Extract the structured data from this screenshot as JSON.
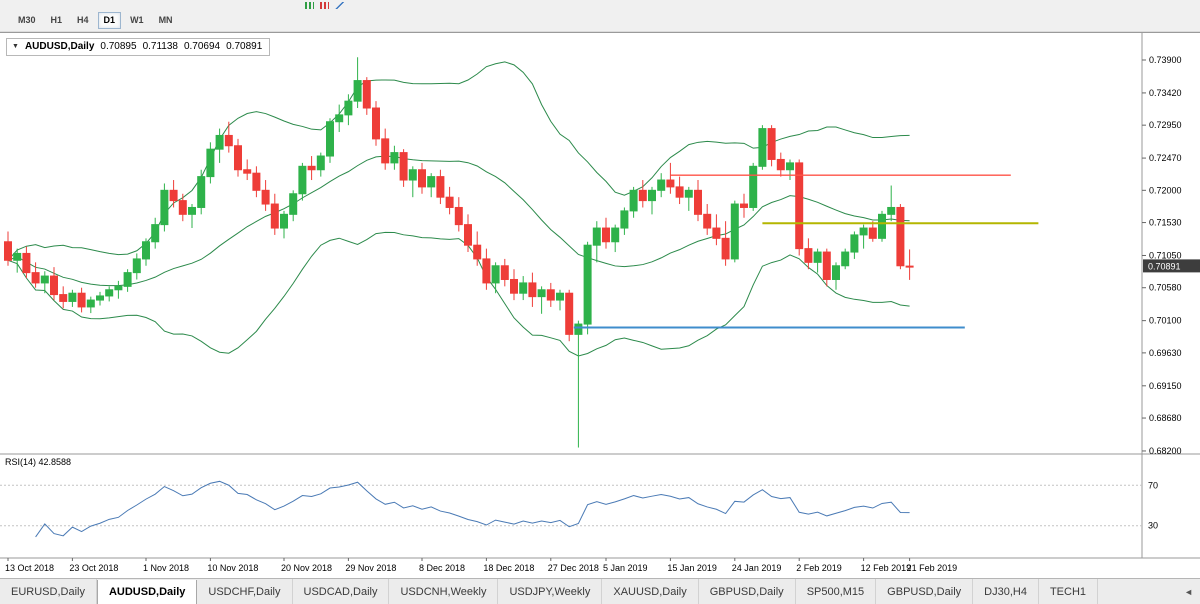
{
  "top_toolbar": {
    "icons": [
      {
        "name": "bar-chart-icon"
      },
      {
        "name": "candlestick-chart-icon"
      },
      {
        "name": "line-chart-icon"
      }
    ]
  },
  "timeframe_toolbar": {
    "buttons": [
      {
        "label": "M30",
        "active": false
      },
      {
        "label": "H1",
        "active": false
      },
      {
        "label": "H4",
        "active": false
      },
      {
        "label": "D1",
        "active": true
      },
      {
        "label": "W1",
        "active": false
      },
      {
        "label": "MN",
        "active": false
      }
    ]
  },
  "chart": {
    "symbol_title": "AUDUSD,Daily",
    "ohlc": {
      "open": "0.70895",
      "high": "0.71138",
      "low": "0.70694",
      "close": "0.70891"
    },
    "rsi_label": "RSI(14) 42.8588",
    "current_price": "0.70891",
    "collapse_arrow": "▼"
  },
  "chart_data": {
    "type": "candlestick",
    "title": "AUDUSD,Daily",
    "symbol": "AUDUSD",
    "timeframe": "Daily",
    "price_axis_ticks": [
      "0.73900",
      "0.73420",
      "0.72950",
      "0.72470",
      "0.72000",
      "0.71530",
      "0.71050",
      "0.70580",
      "0.70100",
      "0.69630",
      "0.69150",
      "0.68680",
      "0.68200"
    ],
    "date_labels": [
      {
        "text": "13 Oct 2018",
        "i": 0
      },
      {
        "text": "23 Oct 2018",
        "i": 7
      },
      {
        "text": "1 Nov 2018",
        "i": 15
      },
      {
        "text": "10 Nov 2018",
        "i": 22
      },
      {
        "text": "20 Nov 2018",
        "i": 30
      },
      {
        "text": "29 Nov 2018",
        "i": 37
      },
      {
        "text": "8 Dec 2018",
        "i": 45
      },
      {
        "text": "18 Dec 2018",
        "i": 52
      },
      {
        "text": "27 Dec 2018",
        "i": 59
      },
      {
        "text": "5 Jan 2019",
        "i": 65
      },
      {
        "text": "15 Jan 2019",
        "i": 72
      },
      {
        "text": "24 Jan 2019",
        "i": 79
      },
      {
        "text": "2 Feb 2019",
        "i": 86
      },
      {
        "text": "12 Feb 2019",
        "i": 93
      },
      {
        "text": "21 Feb 2019",
        "i": 98
      }
    ],
    "candles_ohlc": [
      [
        0.7125,
        0.714,
        0.709,
        0.7098
      ],
      [
        0.7098,
        0.7115,
        0.708,
        0.7108
      ],
      [
        0.7108,
        0.7118,
        0.7072,
        0.708
      ],
      [
        0.708,
        0.7095,
        0.7058,
        0.7065
      ],
      [
        0.7065,
        0.7082,
        0.705,
        0.7075
      ],
      [
        0.7075,
        0.7088,
        0.704,
        0.7048
      ],
      [
        0.7048,
        0.706,
        0.7028,
        0.7038
      ],
      [
        0.7038,
        0.7055,
        0.703,
        0.705
      ],
      [
        0.705,
        0.7058,
        0.7022,
        0.703
      ],
      [
        0.703,
        0.7045,
        0.7021,
        0.704
      ],
      [
        0.704,
        0.7052,
        0.7032,
        0.7046
      ],
      [
        0.7046,
        0.706,
        0.7038,
        0.7055
      ],
      [
        0.7055,
        0.7068,
        0.7042,
        0.706
      ],
      [
        0.706,
        0.7085,
        0.7052,
        0.708
      ],
      [
        0.708,
        0.7108,
        0.707,
        0.71
      ],
      [
        0.71,
        0.713,
        0.709,
        0.7125
      ],
      [
        0.7125,
        0.716,
        0.7115,
        0.715
      ],
      [
        0.715,
        0.721,
        0.714,
        0.72
      ],
      [
        0.72,
        0.7215,
        0.7175,
        0.7185
      ],
      [
        0.7185,
        0.7195,
        0.7155,
        0.7165
      ],
      [
        0.7165,
        0.718,
        0.7145,
        0.7175
      ],
      [
        0.7175,
        0.723,
        0.7165,
        0.722
      ],
      [
        0.722,
        0.727,
        0.721,
        0.726
      ],
      [
        0.726,
        0.729,
        0.724,
        0.728
      ],
      [
        0.728,
        0.73,
        0.7255,
        0.7265
      ],
      [
        0.7265,
        0.7275,
        0.722,
        0.723
      ],
      [
        0.723,
        0.7245,
        0.7215,
        0.7225
      ],
      [
        0.7225,
        0.7235,
        0.719,
        0.72
      ],
      [
        0.72,
        0.7215,
        0.717,
        0.718
      ],
      [
        0.718,
        0.7195,
        0.7135,
        0.7145
      ],
      [
        0.7145,
        0.717,
        0.713,
        0.7165
      ],
      [
        0.7165,
        0.72,
        0.7155,
        0.7195
      ],
      [
        0.7195,
        0.724,
        0.7185,
        0.7235
      ],
      [
        0.7235,
        0.725,
        0.7215,
        0.723
      ],
      [
        0.723,
        0.7255,
        0.722,
        0.725
      ],
      [
        0.725,
        0.7305,
        0.724,
        0.73
      ],
      [
        0.73,
        0.7325,
        0.7285,
        0.731
      ],
      [
        0.731,
        0.734,
        0.7295,
        0.733
      ],
      [
        0.733,
        0.7394,
        0.732,
        0.736
      ],
      [
        0.736,
        0.7365,
        0.731,
        0.732
      ],
      [
        0.732,
        0.733,
        0.7265,
        0.7275
      ],
      [
        0.7275,
        0.729,
        0.723,
        0.724
      ],
      [
        0.724,
        0.7265,
        0.723,
        0.7255
      ],
      [
        0.7255,
        0.726,
        0.7205,
        0.7215
      ],
      [
        0.7215,
        0.7235,
        0.719,
        0.723
      ],
      [
        0.723,
        0.724,
        0.7195,
        0.7205
      ],
      [
        0.7205,
        0.7225,
        0.719,
        0.722
      ],
      [
        0.722,
        0.723,
        0.718,
        0.719
      ],
      [
        0.719,
        0.7205,
        0.7165,
        0.7175
      ],
      [
        0.7175,
        0.719,
        0.714,
        0.715
      ],
      [
        0.715,
        0.7165,
        0.711,
        0.712
      ],
      [
        0.712,
        0.714,
        0.709,
        0.71
      ],
      [
        0.71,
        0.7115,
        0.7055,
        0.7065
      ],
      [
        0.7065,
        0.7095,
        0.705,
        0.709
      ],
      [
        0.709,
        0.71,
        0.706,
        0.707
      ],
      [
        0.707,
        0.7085,
        0.704,
        0.705
      ],
      [
        0.705,
        0.7075,
        0.704,
        0.7065
      ],
      [
        0.7065,
        0.708,
        0.703,
        0.7045
      ],
      [
        0.7045,
        0.706,
        0.702,
        0.7055
      ],
      [
        0.7055,
        0.7065,
        0.703,
        0.704
      ],
      [
        0.704,
        0.7055,
        0.7025,
        0.705
      ],
      [
        0.705,
        0.7055,
        0.698,
        0.699
      ],
      [
        0.699,
        0.701,
        0.6825,
        0.7005
      ],
      [
        0.7005,
        0.7125,
        0.699,
        0.712
      ],
      [
        0.712,
        0.7155,
        0.7095,
        0.7145
      ],
      [
        0.7145,
        0.716,
        0.7115,
        0.7125
      ],
      [
        0.7125,
        0.715,
        0.711,
        0.7145
      ],
      [
        0.7145,
        0.7175,
        0.7135,
        0.717
      ],
      [
        0.717,
        0.7205,
        0.716,
        0.72
      ],
      [
        0.72,
        0.7215,
        0.7175,
        0.7185
      ],
      [
        0.7185,
        0.7205,
        0.7165,
        0.72
      ],
      [
        0.72,
        0.7225,
        0.719,
        0.7215
      ],
      [
        0.7215,
        0.724,
        0.7195,
        0.7205
      ],
      [
        0.7205,
        0.722,
        0.718,
        0.719
      ],
      [
        0.719,
        0.7205,
        0.717,
        0.72
      ],
      [
        0.72,
        0.7215,
        0.7155,
        0.7165
      ],
      [
        0.7165,
        0.718,
        0.7135,
        0.7145
      ],
      [
        0.7145,
        0.7165,
        0.712,
        0.713
      ],
      [
        0.713,
        0.7155,
        0.709,
        0.71
      ],
      [
        0.71,
        0.7185,
        0.7095,
        0.718
      ],
      [
        0.718,
        0.7195,
        0.716,
        0.7175
      ],
      [
        0.7175,
        0.724,
        0.717,
        0.7235
      ],
      [
        0.7235,
        0.7295,
        0.723,
        0.729
      ],
      [
        0.729,
        0.7295,
        0.7235,
        0.7245
      ],
      [
        0.7245,
        0.7255,
        0.722,
        0.723
      ],
      [
        0.723,
        0.7245,
        0.7215,
        0.724
      ],
      [
        0.724,
        0.7245,
        0.7105,
        0.7115
      ],
      [
        0.7115,
        0.713,
        0.7085,
        0.7095
      ],
      [
        0.7095,
        0.7115,
        0.708,
        0.711
      ],
      [
        0.711,
        0.7115,
        0.706,
        0.707
      ],
      [
        0.707,
        0.7095,
        0.7055,
        0.709
      ],
      [
        0.709,
        0.7115,
        0.7085,
        0.711
      ],
      [
        0.711,
        0.714,
        0.71,
        0.7135
      ],
      [
        0.7135,
        0.715,
        0.7115,
        0.7145
      ],
      [
        0.7145,
        0.7155,
        0.7125,
        0.713
      ],
      [
        0.713,
        0.717,
        0.7125,
        0.7165
      ],
      [
        0.7165,
        0.7207,
        0.7155,
        0.7175
      ],
      [
        0.7175,
        0.718,
        0.7085,
        0.709
      ],
      [
        0.70895,
        0.71138,
        0.70694,
        0.70891
      ]
    ],
    "indicators": {
      "bollinger": {
        "period": 20,
        "deviation": 2,
        "color": "#2c8a4b"
      },
      "rsi": {
        "period": 14,
        "value": 42.8588,
        "levels": [
          30,
          70
        ],
        "color": "#4a7ab5"
      }
    },
    "trend_lines": [
      {
        "name": "resistance-line-red",
        "price": 0.7222,
        "from_index": 72,
        "to_index": 109,
        "color": "#ff5347",
        "width": 1.4
      },
      {
        "name": "resistance-line-yellow",
        "price": 0.7152,
        "from_index": 82,
        "to_index": 112,
        "color": "#b4b600",
        "width": 2
      },
      {
        "name": "support-line-blue",
        "price": 0.7,
        "from_index": 61.5,
        "to_index": 104,
        "color": "#3f8dcc",
        "width": 2
      }
    ],
    "colors": {
      "up": "#2eb24a",
      "down": "#ee3d38",
      "bollinger": "#2c8a4b",
      "rsi_line": "#4a7ab5",
      "axis_text": "#000000",
      "badge_bg": "#3d3d3d",
      "badge_text": "#ffffff",
      "grid_dash": "#c4c4c4",
      "separator": "#9a9a9a"
    }
  },
  "bottom_tabs": {
    "tabs": [
      {
        "label": "EURUSD,Daily",
        "active": false
      },
      {
        "label": "AUDUSD,Daily",
        "active": true
      },
      {
        "label": "USDCHF,Daily",
        "active": false
      },
      {
        "label": "USDCAD,Daily",
        "active": false
      },
      {
        "label": "USDCNH,Weekly",
        "active": false
      },
      {
        "label": "USDJPY,Weekly",
        "active": false
      },
      {
        "label": "XAUUSD,Daily",
        "active": false
      },
      {
        "label": "GBPUSD,Daily",
        "active": false
      },
      {
        "label": "SP500,M15",
        "active": false
      },
      {
        "label": "GBPUSD,Daily",
        "active": false
      },
      {
        "label": "DJ30,H4",
        "active": false
      },
      {
        "label": "TECH1",
        "active": false
      }
    ],
    "scroll_left_icon": "◄"
  }
}
